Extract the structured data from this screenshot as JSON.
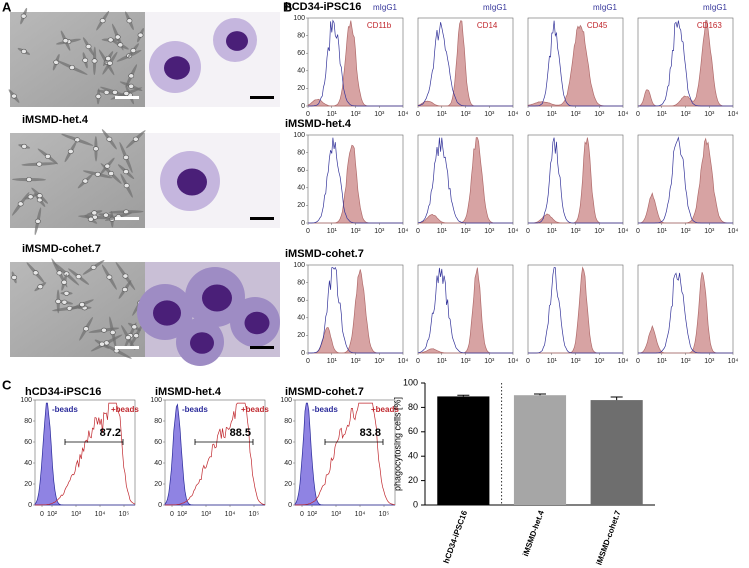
{
  "panel_letters": [
    "A",
    "B",
    "C"
  ],
  "cell_lines": [
    "hCD34-iPSC16",
    "iMSMD-het.4",
    "iMSMD-cohet.7"
  ],
  "flow_b": {
    "isotype": "mIgG1",
    "markers": [
      "CD11b",
      "CD14",
      "CD45",
      "CD163"
    ],
    "yticks": [
      0,
      20,
      40,
      60,
      80,
      100
    ],
    "xticks": [
      {
        "value": 0,
        "label": "0"
      },
      {
        "value": 10,
        "label": "10¹"
      },
      {
        "value": 100,
        "label": "10²"
      },
      {
        "value": 1000,
        "label": "10³"
      },
      {
        "value": 10000,
        "label": "10⁴"
      }
    ]
  },
  "flow_c": {
    "negative": "-beads",
    "positive": "+beads",
    "gated_percent": [
      87.2,
      88.5,
      83.8
    ],
    "yticks": [
      0,
      20,
      40,
      60,
      80,
      100
    ],
    "xticks": [
      {
        "value": 0,
        "label": "0"
      },
      {
        "value": 100,
        "label": "10²"
      },
      {
        "value": 1000,
        "label": "10³"
      },
      {
        "value": 10000,
        "label": "10⁴"
      },
      {
        "value": 100000,
        "label": "10⁵"
      }
    ]
  },
  "chart_data": {
    "type": "bar",
    "y_label": "phagocytosing cells [%]",
    "categories": [
      "hCD34-iPSC16",
      "iMSMD-het.4",
      "iMSMD-cohet.7"
    ],
    "values": [
      89,
      90,
      86
    ],
    "errors": [
      1,
      1,
      2.5
    ],
    "colors": [
      "#000000",
      "#a6a6a6",
      "#6e6e6e"
    ],
    "ylim": [
      0,
      100
    ],
    "yticks": [
      0,
      20,
      40,
      60,
      80,
      100
    ]
  }
}
